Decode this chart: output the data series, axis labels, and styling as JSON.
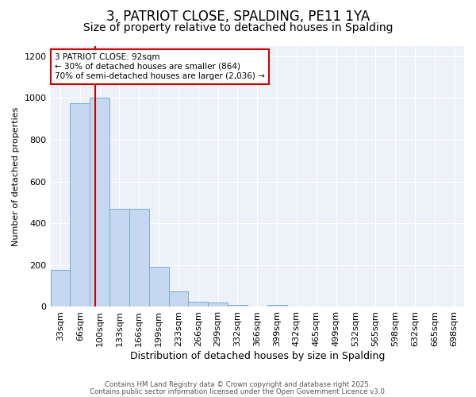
{
  "title1": "3, PATRIOT CLOSE, SPALDING, PE11 1YA",
  "title2": "Size of property relative to detached houses in Spalding",
  "xlabel": "Distribution of detached houses by size in Spalding",
  "ylabel": "Number of detached properties",
  "bins": [
    "33sqm",
    "66sqm",
    "100sqm",
    "133sqm",
    "166sqm",
    "199sqm",
    "233sqm",
    "266sqm",
    "299sqm",
    "332sqm",
    "366sqm",
    "399sqm",
    "432sqm",
    "465sqm",
    "499sqm",
    "532sqm",
    "565sqm",
    "598sqm",
    "632sqm",
    "665sqm",
    "698sqm"
  ],
  "values": [
    175,
    975,
    1000,
    470,
    470,
    190,
    75,
    25,
    20,
    10,
    0,
    10,
    0,
    0,
    0,
    0,
    0,
    0,
    0,
    0,
    0
  ],
  "bar_color": "#c5d8ef",
  "bar_edge_color": "#7aadd4",
  "annotation_line1": "3 PATRIOT CLOSE: 92sqm",
  "annotation_line2": "← 30% of detached houses are smaller (864)",
  "annotation_line3": "70% of semi-detached houses are larger (2,036) →",
  "annotation_box_color": "#ffffff",
  "annotation_box_edge": "#cc0000",
  "ylim": [
    0,
    1250
  ],
  "yticks": [
    0,
    200,
    400,
    600,
    800,
    1000,
    1200
  ],
  "fig_bg_color": "#ffffff",
  "plot_bg_color": "#edf2f9",
  "grid_color": "#ffffff",
  "footer1": "Contains HM Land Registry data © Crown copyright and database right 2025.",
  "footer2": "Contains public sector information licensed under the Open Government Licence v3.0.",
  "title_fontsize": 12,
  "subtitle_fontsize": 10,
  "red_line_color": "#cc0000"
}
